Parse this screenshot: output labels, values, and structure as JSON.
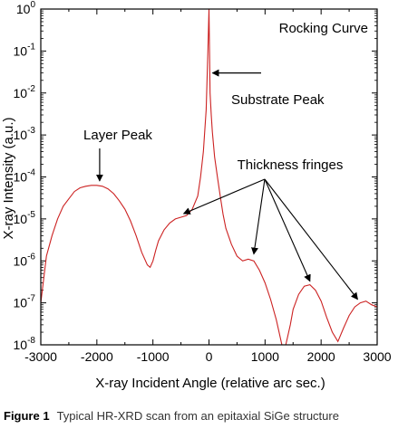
{
  "chart_data": {
    "type": "line",
    "title": "Rocking Curve",
    "xlabel": "X-ray Incident Angle (relative arc sec.)",
    "ylabel": "X-ray Intensity (a.u.)",
    "xlim": [
      -3000,
      3000
    ],
    "ylim_log10": [
      -8,
      0
    ],
    "y_scale": "log",
    "x_ticks": [
      -3000,
      -2000,
      -1000,
      0,
      1000,
      2000,
      3000
    ],
    "x_tick_labels": [
      "-3000",
      "-2000",
      "-1000",
      "0",
      "1000",
      "2000",
      "3000"
    ],
    "y_ticks": [
      {
        "base": "10",
        "exp": "0"
      },
      {
        "base": "10",
        "exp": "-1"
      },
      {
        "base": "10",
        "exp": "-2"
      },
      {
        "base": "10",
        "exp": "-3"
      },
      {
        "base": "10",
        "exp": "-4"
      },
      {
        "base": "10",
        "exp": "-5"
      },
      {
        "base": "10",
        "exp": "-6"
      },
      {
        "base": "10",
        "exp": "-7"
      },
      {
        "base": "10",
        "exp": "-8"
      }
    ],
    "series": [
      {
        "color": "#cc2222",
        "x": [
          -3000,
          -2900,
          -2800,
          -2700,
          -2600,
          -2500,
          -2400,
          -2300,
          -2200,
          -2100,
          -2000,
          -1900,
          -1800,
          -1700,
          -1600,
          -1500,
          -1400,
          -1300,
          -1200,
          -1100,
          -1050,
          -1000,
          -950,
          -900,
          -800,
          -700,
          -600,
          -500,
          -400,
          -300,
          -200,
          -150,
          -100,
          -50,
          -20,
          0,
          10,
          20,
          40,
          60,
          100,
          150,
          200,
          250,
          300,
          400,
          500,
          600,
          700,
          800,
          900,
          1000,
          1100,
          1200,
          1250,
          1300,
          1330,
          1370,
          1400,
          1450,
          1500,
          1600,
          1700,
          1800,
          1900,
          2000,
          2100,
          2200,
          2300,
          2400,
          2500,
          2600,
          2700,
          2800,
          2900,
          3000
        ],
        "y": [
          1e-07,
          1.3e-06,
          4e-06,
          1e-05,
          2e-05,
          3e-05,
          4.5e-05,
          5.5e-05,
          6e-05,
          6.3e-05,
          6.3e-05,
          6e-05,
          5.2e-05,
          4e-05,
          2.7e-05,
          1.7e-05,
          9e-06,
          4e-06,
          1.6e-06,
          8e-07,
          7e-07,
          1e-06,
          1.8e-06,
          3e-06,
          5.5e-06,
          8e-06,
          1e-05,
          1.1e-05,
          1.2e-05,
          1.7e-05,
          3.5e-05,
          0.0001,
          0.0004,
          0.004,
          0.1,
          1,
          0.1,
          0.01,
          0.003,
          0.0012,
          0.0003,
          0.0001,
          3.5e-05,
          1.3e-05,
          6e-06,
          2.5e-06,
          1.3e-06,
          1e-06,
          1.1e-06,
          1e-06,
          6e-07,
          3e-07,
          1.2e-07,
          4e-08,
          2e-08,
          1e-08,
          1e-08,
          1e-08,
          1.5e-08,
          3e-08,
          7e-08,
          1.6e-07,
          2.5e-07,
          2.7e-07,
          2e-07,
          1.1e-07,
          4.5e-08,
          2e-08,
          1.2e-08,
          2.5e-08,
          5e-08,
          8e-08,
          1e-07,
          1.1e-07,
          9e-08,
          8e-08
        ]
      }
    ],
    "annotations": [
      {
        "text": "Layer Peak",
        "arrow_to_x": -1950,
        "arrow_to_y": 6e-05
      },
      {
        "text": "Substrate Peak",
        "arrow_to_x": 15,
        "arrow_to_y": 0.03
      },
      {
        "text": "Thickness fringes",
        "arrow_targets": [
          [
            -450,
            1.1e-05
          ],
          [
            800,
            1.2e-06
          ],
          [
            1800,
            2.7e-07
          ],
          [
            2650,
            1e-07
          ]
        ]
      }
    ],
    "grid": false
  },
  "caption": {
    "label": "Figure 1",
    "text": "Typical HR-XRD scan from an epitaxial SiGe structure"
  }
}
